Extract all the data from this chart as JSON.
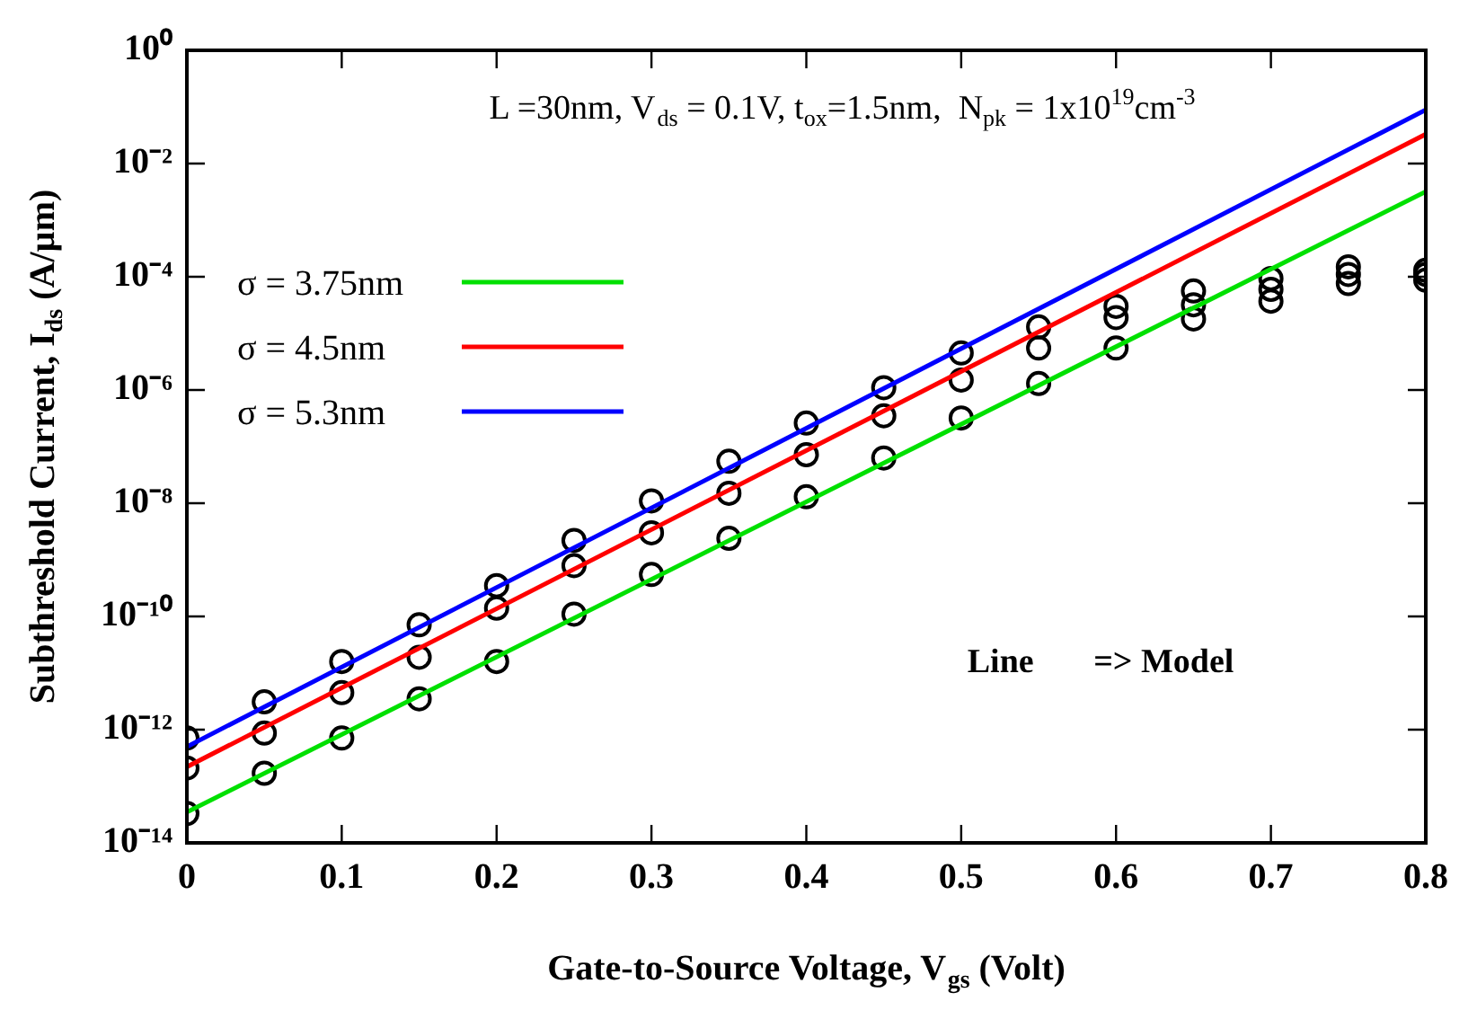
{
  "chart_data": {
    "type": "line",
    "xlabel": "Gate-to-Source Voltage, V$_{gs}$ (Volt)",
    "ylabel": "Subthreshold Current, I$_{ds}$ (A/µm)",
    "annotations": [
      "L =30nm, V$_{ds}$ = 0.1V, t$_{ox}$=1.5nm,  N$_{pk}$ = 1x10$^{19}$cm$^{-3}$",
      "Line       => Model"
    ],
    "log": "y",
    "legend": "top left",
    "line_style": "solid",
    "xlim": [
      0,
      0.8
    ],
    "xticks": [
      0,
      0.1,
      0.2,
      0.3,
      0.4,
      0.5,
      0.6,
      0.7,
      0.8
    ],
    "ylim": [
      1e-14,
      1
    ],
    "yticks": [
      {
        "value": 1e-14,
        "label": "10⁻¹⁴"
      },
      {
        "value": 1e-12,
        "label": "10⁻¹²"
      },
      {
        "value": 1e-10,
        "label": "10⁻¹⁰"
      },
      {
        "value": 1e-08,
        "label": "10⁻⁸"
      },
      {
        "value": 1e-06,
        "label": "10⁻⁶"
      },
      {
        "value": 0.0001,
        "label": "10⁻⁴"
      },
      {
        "value": 0.01,
        "label": "10⁻²"
      },
      {
        "value": 1,
        "label": "10⁰"
      }
    ],
    "series": [
      {
        "name": "σ = 3.75nm",
        "color": "#00e000",
        "x": [
          0,
          0.8
        ],
        "values": [
          3.5e-14,
          0.0032
        ]
      },
      {
        "name": "σ = 4.5nm",
        "color": "#ff0000",
        "x": [
          0,
          0.8
        ],
        "values": [
          2.2e-13,
          0.033
        ]
      },
      {
        "name": "σ = 5.3nm",
        "color": "#0000ff",
        "x": [
          0,
          0.8
        ],
        "values": [
          5e-13,
          0.089
        ]
      },
      {
        "type": "scatter",
        "marker": "circle",
        "color": "#000000",
        "x": [
          0,
          0.05,
          0.1,
          0.15,
          0.2,
          0.25,
          0.3,
          0.35,
          0.4,
          0.45,
          0.5,
          0.55,
          0.6,
          0.65,
          0.7,
          0.75,
          0.8
        ],
        "values": [
          3.3e-14,
          1.7e-13,
          7.1e-13,
          3.5e-12,
          1.6e-11,
          1.1e-10,
          5.5e-10,
          2.4e-09,
          1.3e-08,
          6.3e-08,
          3.2e-07,
          1.3e-06,
          5.5e-06,
          1.8e-05,
          3.7e-05,
          7.6e-05,
          8.7e-05
        ]
      },
      {
        "type": "scatter",
        "marker": "circle",
        "color": "#000000",
        "x": [
          0,
          0.05,
          0.1,
          0.15,
          0.2,
          0.25,
          0.3,
          0.35,
          0.4,
          0.45,
          0.5,
          0.55,
          0.6,
          0.65,
          0.7,
          0.75,
          0.8
        ],
        "values": [
          2.1e-13,
          8.7e-13,
          4.5e-12,
          1.9e-11,
          1.4e-10,
          7.9e-10,
          3e-09,
          1.5e-08,
          7.2e-08,
          3.5e-07,
          1.5e-06,
          5.5e-06,
          1.9e-05,
          3.2e-05,
          6e-05,
          0.00011,
          0.00011
        ]
      },
      {
        "type": "scatter",
        "marker": "circle",
        "color": "#000000",
        "x": [
          0,
          0.05,
          0.1,
          0.15,
          0.2,
          0.25,
          0.3,
          0.35,
          0.4,
          0.45,
          0.5,
          0.55,
          0.6,
          0.65,
          0.7,
          0.75,
          0.8
        ],
        "values": [
          7.1e-13,
          3.1e-12,
          1.6e-11,
          7.1e-11,
          3.5e-10,
          2.2e-09,
          1.1e-08,
          5.5e-08,
          2.6e-07,
          1.1e-06,
          4.5e-06,
          1.3e-05,
          3e-05,
          5.6e-05,
          9.3e-05,
          0.00015,
          0.00013
        ]
      }
    ]
  }
}
